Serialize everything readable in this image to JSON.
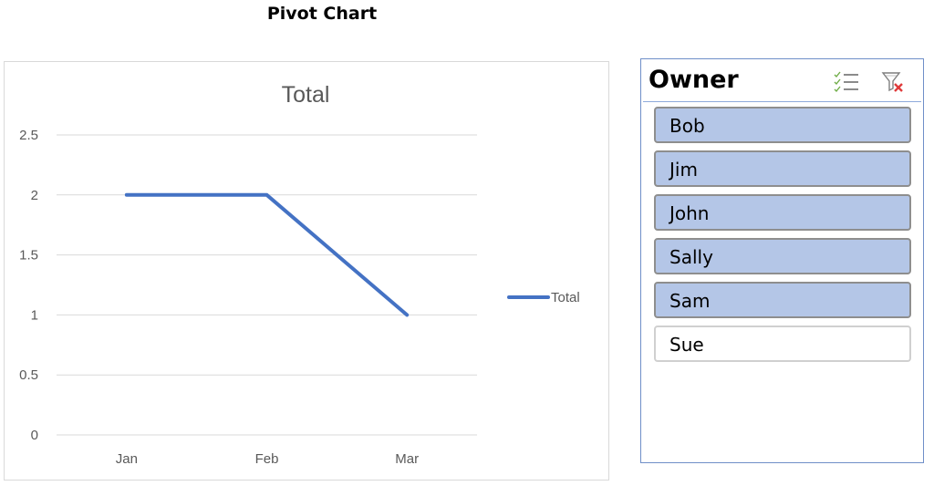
{
  "page_title": "Pivot Chart",
  "chart_data": {
    "type": "line",
    "title": "Total",
    "categories": [
      "Jan",
      "Feb",
      "Mar"
    ],
    "series": [
      {
        "name": "Total",
        "values": [
          2,
          2,
          1
        ],
        "color": "#4472c4"
      }
    ],
    "ylim": [
      0,
      2.5
    ],
    "yticks": [
      "0",
      "0.5",
      "1",
      "1.5",
      "2",
      "2.5"
    ],
    "grid": true,
    "legend": "right"
  },
  "slicer": {
    "title": "Owner",
    "icons": [
      "multi-select-icon",
      "clear-filter-icon"
    ],
    "items": [
      {
        "label": "Bob",
        "selected": true
      },
      {
        "label": "Jim",
        "selected": true
      },
      {
        "label": "John",
        "selected": true
      },
      {
        "label": "Sally",
        "selected": true
      },
      {
        "label": "Sam",
        "selected": true
      },
      {
        "label": "Sue",
        "selected": false
      }
    ],
    "selected_color": "#b4c6e7"
  }
}
